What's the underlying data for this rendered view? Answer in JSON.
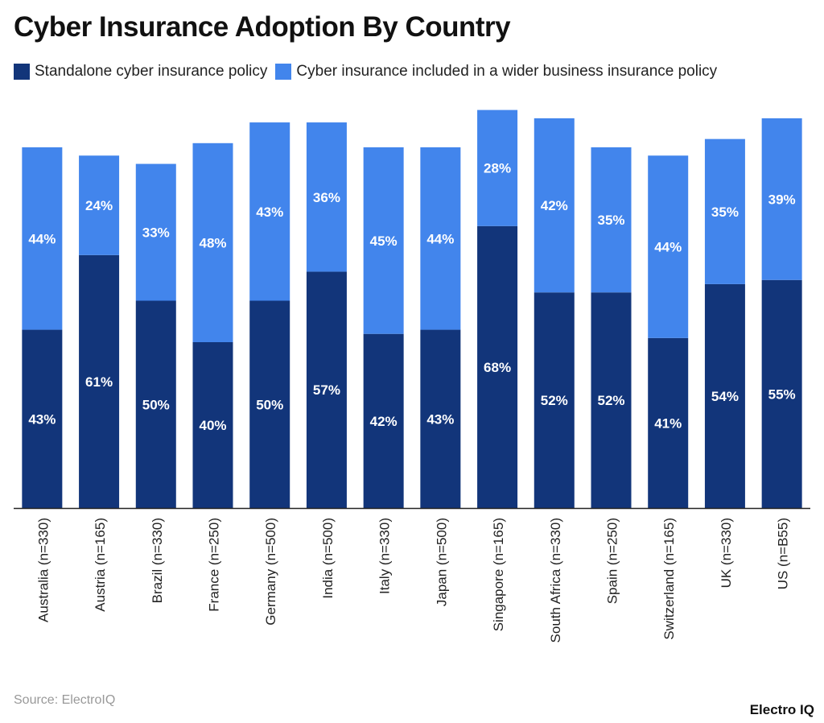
{
  "chart_data": {
    "type": "bar",
    "stacked": true,
    "title": "Cyber Insurance Adoption By Country",
    "categories": [
      "Australia (n=330)",
      "Austria (n=165)",
      "Brazil (n=330)",
      "France (n=250)",
      "Germany (n=500)",
      "India (n=500)",
      "Italy (n=330)",
      "Japan (n=500)",
      "Singapore (n=165)",
      "South Africa (n=330)",
      "Spain (n=250)",
      "Switzerland (n=165)",
      "UK (n=330)",
      "US (n=B55)"
    ],
    "series": [
      {
        "name": "Standalone cyber insurance policy",
        "color": "#12357a",
        "values": [
          43,
          61,
          50,
          40,
          50,
          57,
          42,
          43,
          68,
          52,
          52,
          41,
          54,
          55
        ]
      },
      {
        "name": "Cyber insurance included in a wider business insurance policy",
        "color": "#4285ec",
        "values": [
          44,
          24,
          33,
          48,
          43,
          36,
          45,
          44,
          28,
          42,
          35,
          44,
          35,
          39
        ]
      }
    ],
    "value_format": "percent",
    "ylim": [
      0,
      100
    ],
    "grid": false,
    "legend_position": "top-left"
  },
  "source": "Source: ElectroIQ",
  "brand": "Electro IQ"
}
